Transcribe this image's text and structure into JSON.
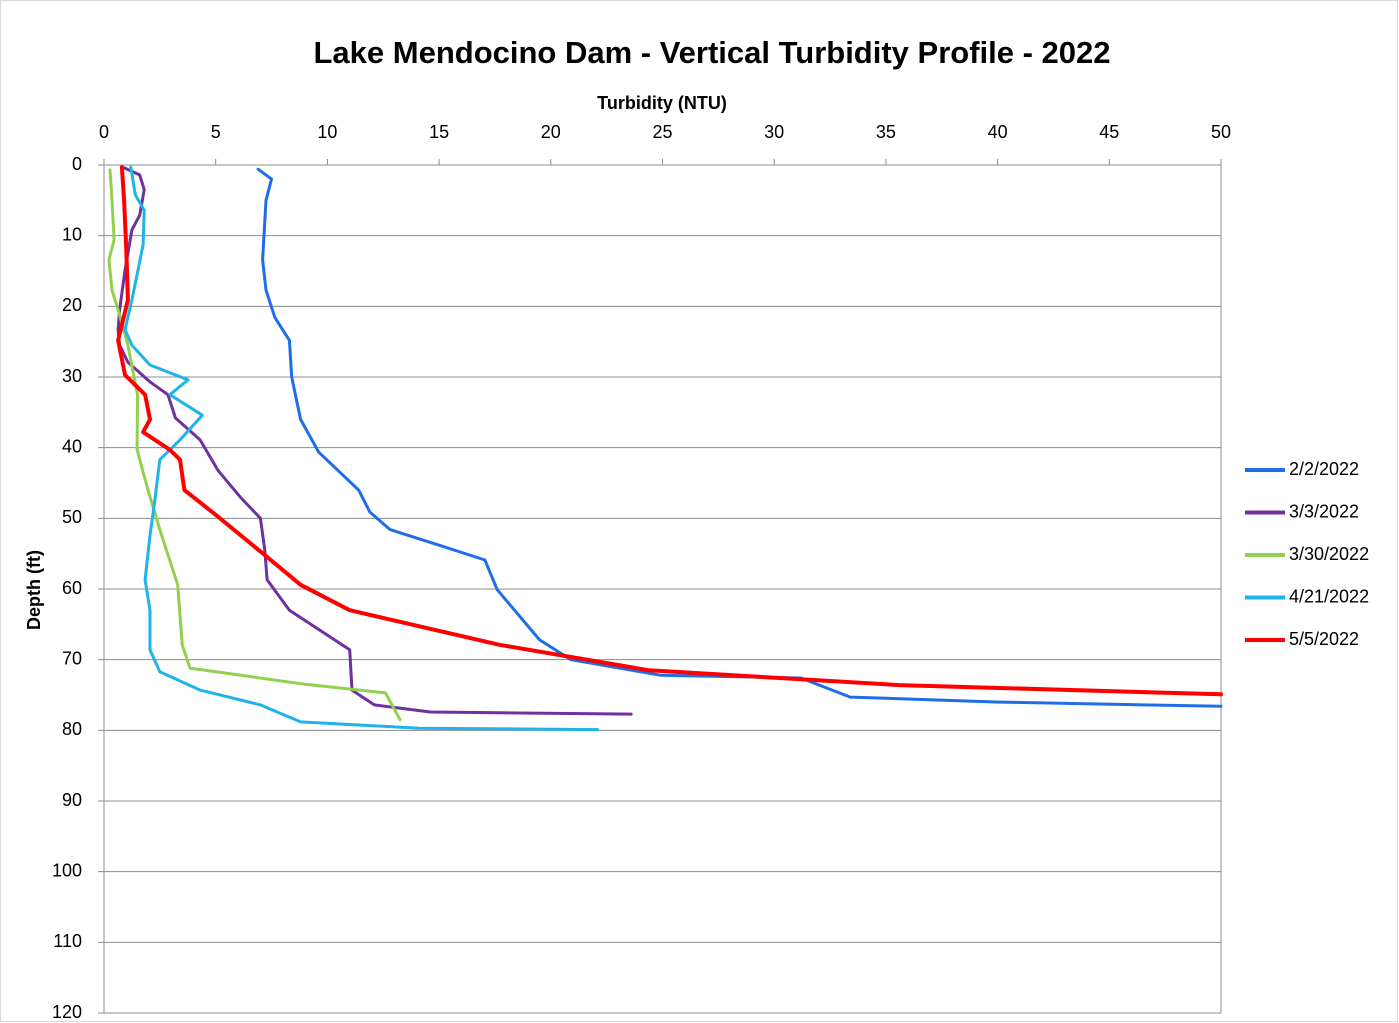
{
  "chart_data": {
    "type": "line",
    "title": "Lake Mendocino Dam - Vertical Turbidity Profile - 2022",
    "x_label": "Turbidity (NTU)",
    "y_label": "Depth (ft)",
    "xlim": [
      0,
      50
    ],
    "xticks": [
      0,
      5,
      10,
      15,
      20,
      25,
      30,
      35,
      40,
      45,
      50
    ],
    "ylim": [
      0,
      120
    ],
    "yticks": [
      0,
      10,
      20,
      30,
      40,
      50,
      60,
      70,
      80,
      90,
      100,
      110,
      120
    ],
    "y_inverted": true,
    "x_axis_position": "top",
    "grid": true,
    "legend": "right",
    "series": [
      {
        "name": "2/2/2022",
        "color": "#1f6ee8",
        "values": [
          6.9,
          7.5,
          7.25,
          7.1,
          7.25,
          7.65,
          8.3,
          8.4,
          8.8,
          9.6,
          10.7,
          11.4,
          11.9,
          12.8,
          15,
          17.05,
          17.6,
          19.5,
          20.9,
          24.9,
          31.2,
          33.4,
          40.1,
          50
        ],
        "depth": [
          0.6,
          2,
          5,
          13.4,
          17.7,
          21.6,
          24.8,
          30,
          36,
          40.6,
          43.9,
          46,
          49.1,
          51.6,
          53.8,
          55.9,
          60.1,
          67.2,
          70,
          72.2,
          72.6,
          75.3,
          76,
          76.6
        ]
      },
      {
        "name": "3/3/2022",
        "color": "#7030a0",
        "values": [
          0.9,
          1.6,
          1.8,
          1.6,
          1.25,
          0.94,
          0.7,
          0.63,
          0.7,
          1.07,
          2.06,
          2.86,
          3.2,
          4.3,
          5.1,
          6.1,
          7,
          7.2,
          7.3,
          8.3,
          11,
          11.1,
          12.1,
          14.6,
          23.6
        ],
        "depth": [
          0.4,
          1.4,
          3.5,
          7.1,
          9.2,
          14.9,
          20.5,
          23.3,
          25.5,
          27.9,
          30.7,
          32.5,
          35.8,
          38.9,
          43.2,
          47,
          50,
          54.5,
          58.7,
          63,
          68.6,
          74.3,
          76.4,
          77.4,
          77.7
        ]
      },
      {
        "name": "3/30/2022",
        "color": "#92d050",
        "values": [
          0.27,
          0.36,
          0.45,
          0.22,
          0.36,
          0.7,
          1.07,
          1.5,
          1.48,
          1.97,
          2.5,
          3.3,
          3.5,
          3.85,
          8.8,
          12.6,
          13.25
        ],
        "depth": [
          0.7,
          5,
          10.6,
          13.4,
          17.7,
          21.2,
          25.5,
          32.5,
          40.3,
          46,
          51.6,
          59.4,
          67.9,
          71.2,
          73.4,
          74.7,
          78.5
        ]
      },
      {
        "name": "4/21/2022",
        "color": "#1fb4e8",
        "values": [
          1.2,
          1.4,
          1.8,
          1.75,
          1.25,
          0.94,
          1.25,
          2.06,
          3.76,
          2.95,
          4.4,
          3.4,
          2.5,
          2.28,
          2.06,
          1.84,
          2.06,
          2.06,
          2.5,
          4.3,
          7,
          8.8,
          14.1,
          22.1
        ],
        "depth": [
          0.3,
          4.2,
          6.4,
          11.3,
          19.1,
          23.3,
          25.5,
          28.3,
          30.4,
          32.5,
          35.4,
          38.9,
          41.7,
          47.4,
          52.4,
          58.7,
          63,
          68.6,
          71.7,
          74.3,
          76.4,
          78.8,
          79.7,
          79.9
        ]
      },
      {
        "name": "5/5/2022",
        "color": "#ff0000",
        "values": [
          0.8,
          0.9,
          1,
          1.07,
          0.63,
          0.94,
          1.84,
          2.06,
          1.75,
          2.95,
          3.4,
          3.6,
          5,
          7.2,
          8.8,
          11,
          17.7,
          24.4,
          35.6,
          50
        ],
        "depth": [
          0.3,
          5,
          12,
          19.1,
          24.8,
          29.7,
          32.5,
          36,
          37.8,
          40.3,
          41.7,
          46,
          49.5,
          55.2,
          59.4,
          63,
          67.9,
          71.5,
          73.6,
          74.9
        ]
      }
    ]
  }
}
